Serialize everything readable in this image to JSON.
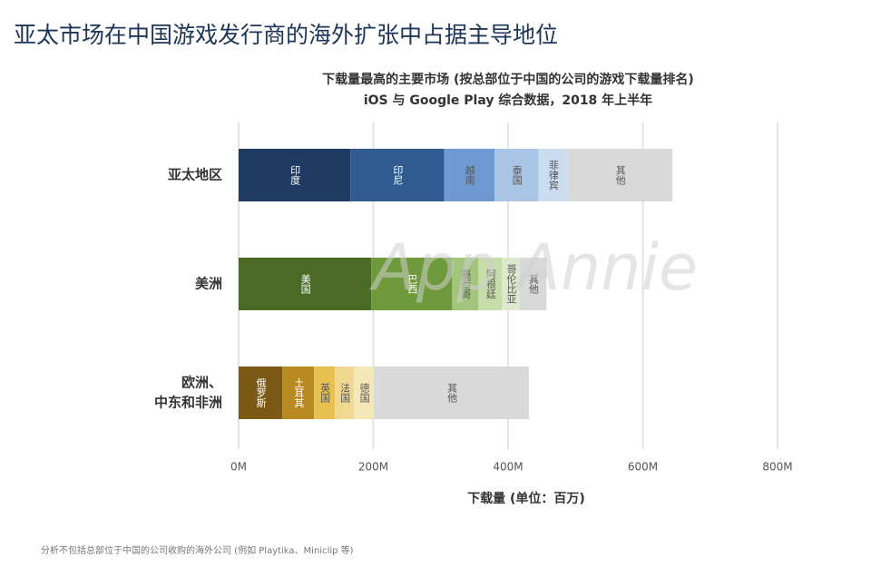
{
  "header": {
    "title": "亚太市场在中国游戏发行商的海外扩张中占据主导地位"
  },
  "chart_data": {
    "type": "stacked-barh",
    "title": "下载量最高的主要市场 (按总部位于中国的公司的游戏下载量排名)",
    "subtitle": "iOS 与 Google Play 综合数据，2018 年上半年",
    "xlabel": "下载量 (单位：百万)",
    "xlim": [
      0,
      800
    ],
    "xticks": [
      {
        "value": 0,
        "label": "0M"
      },
      {
        "value": 200,
        "label": "200M"
      },
      {
        "value": 400,
        "label": "400M"
      },
      {
        "value": 600,
        "label": "600M"
      },
      {
        "value": 800,
        "label": "800M"
      }
    ],
    "grid": true,
    "watermark": "App Annie",
    "bars": [
      {
        "label_lines": [
          "亚太地区"
        ],
        "segments": [
          {
            "label": "印度",
            "value": 166,
            "color": "#203b63"
          },
          {
            "label": "印尼",
            "value": 139,
            "color": "#305b91"
          },
          {
            "label": "越南",
            "value": 75,
            "color": "#6e99d2"
          },
          {
            "label": "泰国",
            "value": 65,
            "color": "#a9c4e4"
          },
          {
            "label": "菲律宾",
            "value": 43,
            "color": "#cbdbf0"
          },
          {
            "label": "其他",
            "value": 156,
            "color": "#d9d9d9"
          }
        ]
      },
      {
        "label_lines": [
          "美洲"
        ],
        "segments": [
          {
            "label": "美国",
            "value": 197,
            "color": "#4a6a26"
          },
          {
            "label": "巴西",
            "value": 120,
            "color": "#6f9a3b"
          },
          {
            "label": "墨西哥",
            "value": 39,
            "color": "#a3c47b"
          },
          {
            "label": "阿根廷",
            "value": 35,
            "color": "#c6dca9"
          },
          {
            "label": "哥伦比亚",
            "value": 26,
            "color": "#dde9cc"
          },
          {
            "label": "其他",
            "value": 40,
            "color": "#d9d9d9"
          }
        ]
      },
      {
        "label_lines": [
          "欧洲、",
          "中东和非洲"
        ],
        "segments": [
          {
            "label": "俄罗斯",
            "value": 65,
            "color": "#7a5a15"
          },
          {
            "label": "土耳其",
            "value": 47,
            "color": "#b98a21"
          },
          {
            "label": "英国",
            "value": 31,
            "color": "#e8c050"
          },
          {
            "label": "法国",
            "value": 28,
            "color": "#f1d891"
          },
          {
            "label": "德国",
            "value": 30,
            "color": "#f6e7b9"
          },
          {
            "label": "其他",
            "value": 230,
            "color": "#d9d9d9"
          }
        ]
      }
    ]
  },
  "footnote": "分析不包括总部位于中国的公司收购的海外公司 (例如 Playtika、Miniclip 等)"
}
